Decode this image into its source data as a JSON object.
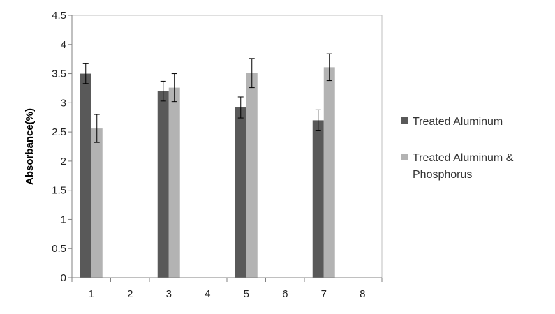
{
  "chart_data": {
    "type": "bar",
    "title": "",
    "xlabel": "",
    "ylabel": "Absorbance(%)",
    "categories": [
      "1",
      "2",
      "3",
      "4",
      "5",
      "6",
      "7",
      "8"
    ],
    "ylim": [
      0,
      4.5
    ],
    "yticks": [
      "0",
      "0.5",
      "1",
      "1.5",
      "2",
      "2.5",
      "3",
      "3.5",
      "4",
      "4.5"
    ],
    "grid": false,
    "legend_position": "right",
    "series": [
      {
        "name": "Treated Aluminum",
        "color": "#595959",
        "values": [
          3.5,
          null,
          3.2,
          null,
          2.92,
          null,
          2.7,
          null
        ],
        "errors": [
          0.17,
          null,
          0.17,
          null,
          0.18,
          null,
          0.18,
          null
        ]
      },
      {
        "name": "Treated Aluminum & Phosphorus",
        "legend_lines": [
          "Treated Aluminum &",
          "Phosphorus"
        ],
        "color": "#b3b3b3",
        "values": [
          2.56,
          null,
          3.26,
          null,
          3.51,
          null,
          3.61,
          null
        ],
        "errors": [
          0.24,
          null,
          0.24,
          null,
          0.25,
          null,
          0.23,
          null
        ]
      }
    ]
  }
}
